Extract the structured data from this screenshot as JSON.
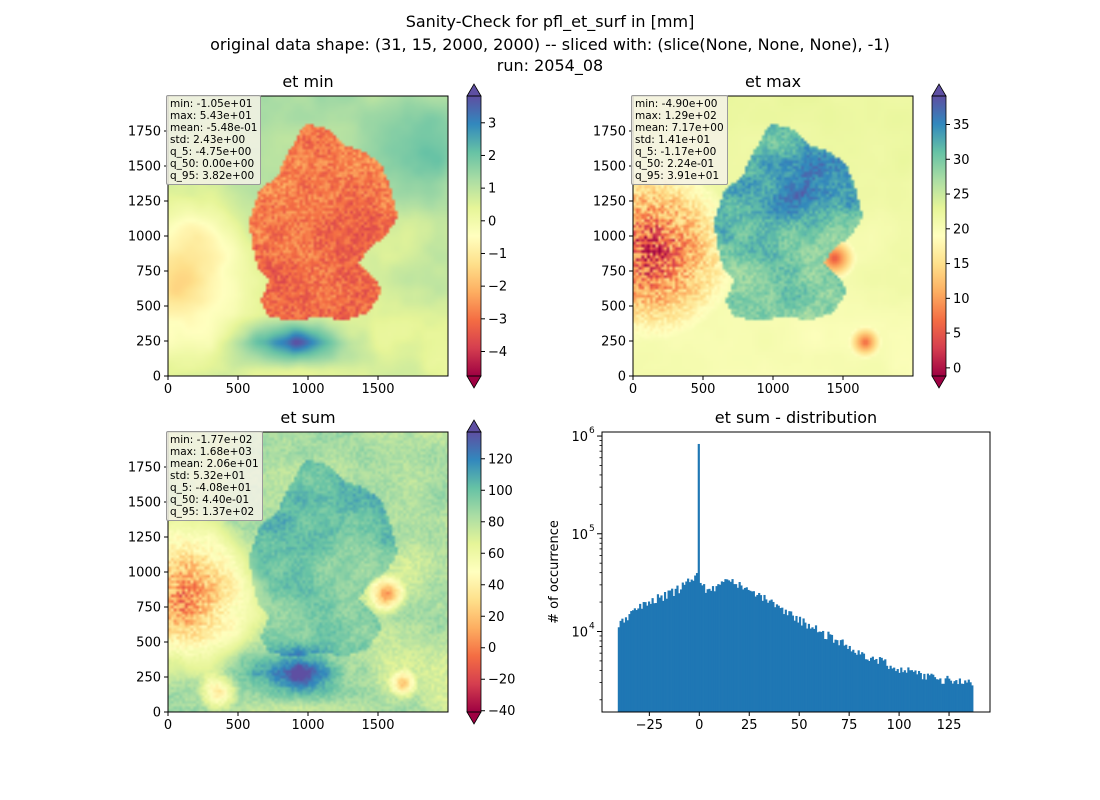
{
  "figure": {
    "suptitle_line1": "Sanity-Check for pfl_et_surf in [mm]",
    "suptitle_line2": "original data shape: (31, 15, 2000, 2000) -- sliced with: (slice(None, None, None), -1)",
    "suptitle_line3": "run: 2054_08"
  },
  "chart_data": [
    {
      "type": "heatmap",
      "title": "et min",
      "xlabel": "",
      "ylabel": "",
      "xlim": [
        0,
        2000
      ],
      "ylim": [
        0,
        2000
      ],
      "xticks": [
        "0",
        "500",
        "1000",
        "1500"
      ],
      "yticks": [
        "0",
        "250",
        "500",
        "750",
        "1000",
        "1250",
        "1500",
        "1750"
      ],
      "colormap": "Spectral",
      "colorbar": {
        "range": [
          -4.75,
          3.82
        ],
        "ticks": [
          "−4",
          "−3",
          "−2",
          "−1",
          "0",
          "1",
          "2",
          "3"
        ],
        "extend": "both"
      },
      "stats": [
        "min: -1.05e+01",
        "max: 5.43e+01",
        "mean: -5.48e-01",
        "std: 2.43e+00",
        "q_5: -4.75e+00",
        "q_50: 0.00e+00",
        "q_95: 3.82e+00"
      ]
    },
    {
      "type": "heatmap",
      "title": "et max",
      "xlabel": "",
      "ylabel": "",
      "xlim": [
        0,
        2000
      ],
      "ylim": [
        0,
        2000
      ],
      "xticks": [
        "0",
        "500",
        "1000",
        "1500"
      ],
      "yticks": [
        "0",
        "250",
        "500",
        "750",
        "1000",
        "1250",
        "1500",
        "1750"
      ],
      "colormap": "Spectral",
      "colorbar": {
        "range": [
          -1.17,
          39.1
        ],
        "ticks": [
          "0",
          "5",
          "10",
          "15",
          "20",
          "25",
          "30",
          "35"
        ],
        "extend": "both"
      },
      "stats": [
        "min: -4.90e+00",
        "max: 1.29e+02",
        "mean: 7.17e+00",
        "std: 1.41e+01",
        "q_5: -1.17e+00",
        "q_50: 2.24e-01",
        "q_95: 3.91e+01"
      ]
    },
    {
      "type": "heatmap",
      "title": "et sum",
      "xlabel": "",
      "ylabel": "",
      "xlim": [
        0,
        2000
      ],
      "ylim": [
        0,
        2000
      ],
      "xticks": [
        "0",
        "500",
        "1000",
        "1500"
      ],
      "yticks": [
        "0",
        "250",
        "500",
        "750",
        "1000",
        "1250",
        "1500",
        "1750"
      ],
      "colormap": "Spectral",
      "colorbar": {
        "range": [
          -40.8,
          137
        ],
        "ticks": [
          "−40",
          "−20",
          "0",
          "20",
          "40",
          "60",
          "80",
          "100",
          "120"
        ],
        "extend": "both"
      },
      "stats": [
        "min: -1.77e+02",
        "max: 1.68e+03",
        "mean: 2.06e+01",
        "std: 5.32e+01",
        "q_5: -4.08e+01",
        "q_50: 4.40e-01",
        "q_95: 1.37e+02"
      ]
    },
    {
      "type": "bar",
      "title": "et sum - distribution",
      "xlabel": "",
      "ylabel": "# of occurrence",
      "yscale": "log",
      "xlim": [
        -48.7,
        145.5
      ],
      "ylim": [
        1500,
        1100000
      ],
      "xticks": [
        "−25",
        "0",
        "25",
        "50",
        "75",
        "100",
        "125"
      ],
      "yticks": [
        "10",
        "10",
        "10"
      ],
      "ytick_exponents": [
        "4",
        "5",
        "6"
      ],
      "bin_range": [
        -40.8,
        137
      ],
      "spike": {
        "x": 0,
        "count": 830000
      },
      "anchors": [
        [
          -40.8,
          12000
        ],
        [
          -35,
          14500
        ],
        [
          -25,
          21000
        ],
        [
          -15,
          24000
        ],
        [
          -5,
          32000
        ],
        [
          -1,
          38000
        ],
        [
          3,
          26000
        ],
        [
          10,
          28000
        ],
        [
          13,
          36000
        ],
        [
          20,
          29000
        ],
        [
          30,
          23000
        ],
        [
          40,
          17500
        ],
        [
          50,
          13000
        ],
        [
          60,
          10000
        ],
        [
          70,
          8000
        ],
        [
          80,
          6000
        ],
        [
          90,
          5000
        ],
        [
          100,
          4200
        ],
        [
          110,
          3600
        ],
        [
          120,
          3300
        ],
        [
          130,
          3100
        ],
        [
          137,
          3000
        ]
      ],
      "color": "#1f77b4"
    }
  ]
}
